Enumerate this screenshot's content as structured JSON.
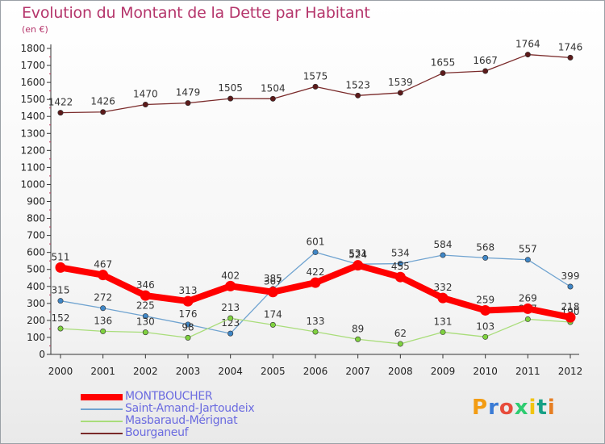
{
  "title": "Evolution du Montant de la Dette par Habitant",
  "unit_label": "(en €)",
  "logo_text": "Proxiti",
  "chart_data": {
    "type": "line",
    "x": [
      "2000",
      "2001",
      "2002",
      "2003",
      "2004",
      "2005",
      "2006",
      "2007",
      "2008",
      "2009",
      "2010",
      "2011",
      "2012"
    ],
    "ylim": [
      0,
      1800
    ],
    "yticks": [
      "0",
      "100",
      "200",
      "300",
      "400",
      "500",
      "600",
      "700",
      "800",
      "900",
      "1000",
      "1100",
      "1200",
      "1300",
      "1400",
      "1500",
      "1600",
      "1700",
      "1800"
    ],
    "grid": false,
    "legend_position": "bottom-left",
    "series": [
      {
        "name": "Bourganeuf",
        "color": "#7a2a2a",
        "marker": "#5c1a1a",
        "width": 1.3,
        "values": [
          1422,
          1426,
          1470,
          1479,
          1505,
          1504,
          1575,
          1523,
          1539,
          1655,
          1667,
          1764,
          1746
        ]
      },
      {
        "name": "Saint-Amand-Jartoudeix",
        "color": "#6fa3d0",
        "marker": "#3f86c6",
        "width": 1.3,
        "values": [
          315,
          272,
          225,
          176,
          123,
          385,
          601,
          531,
          534,
          584,
          568,
          557,
          399
        ]
      },
      {
        "name": "Masbaraud-Mérignat",
        "color": "#a9dd7a",
        "marker": "#7fd13f",
        "width": 1.3,
        "values": [
          152,
          136,
          130,
          98,
          213,
          174,
          133,
          89,
          62,
          131,
          103,
          207,
          190
        ]
      },
      {
        "name": "MONTBOUCHER",
        "color": "#ff0000",
        "marker": "#ff0000",
        "width": 8,
        "values": [
          511,
          467,
          346,
          313,
          402,
          367,
          422,
          524,
          455,
          332,
          259,
          269,
          218
        ]
      }
    ]
  },
  "legend": [
    {
      "label": "MONTBOUCHER",
      "color": "#ff0000"
    },
    {
      "label": "Saint-Amand-Jartoudeix",
      "color": "#6fa3d0"
    },
    {
      "label": "Masbaraud-Mérignat",
      "color": "#a9dd7a"
    },
    {
      "label": "Bourganeuf",
      "color": "#7a2a2a"
    }
  ]
}
